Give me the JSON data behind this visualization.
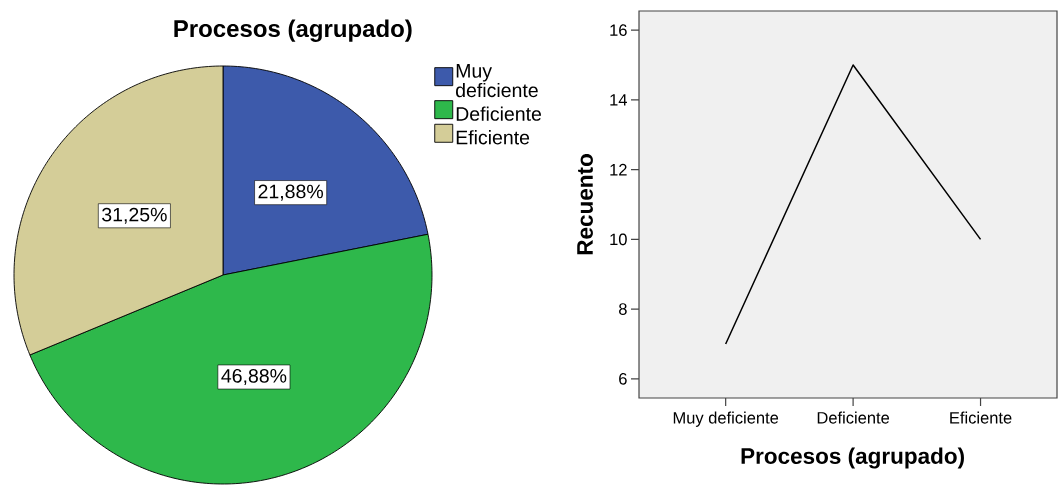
{
  "chart_data": [
    {
      "type": "pie",
      "title": "Procesos (agrupado)",
      "categories": [
        "Muy deficiente",
        "Deficiente",
        "Eficiente"
      ],
      "values": [
        21.88,
        46.88,
        31.25
      ],
      "colors": [
        "#3d5aab",
        "#2eb84b",
        "#d4cd98"
      ],
      "value_labels": [
        "21,88%",
        "46,88%",
        "31,25%"
      ],
      "legend": "top right"
    },
    {
      "type": "line",
      "xlabel": "Procesos (agrupado)",
      "ylabel": "Recuento",
      "categories": [
        "Muy deficiente",
        "Deficiente",
        "Eficiente"
      ],
      "series": [
        {
          "color": "#000000",
          "values": [
            7,
            15,
            10
          ]
        }
      ],
      "ylim": [
        5.45,
        16.55
      ],
      "yticks": [
        6,
        8,
        10,
        12,
        14,
        16
      ]
    }
  ]
}
